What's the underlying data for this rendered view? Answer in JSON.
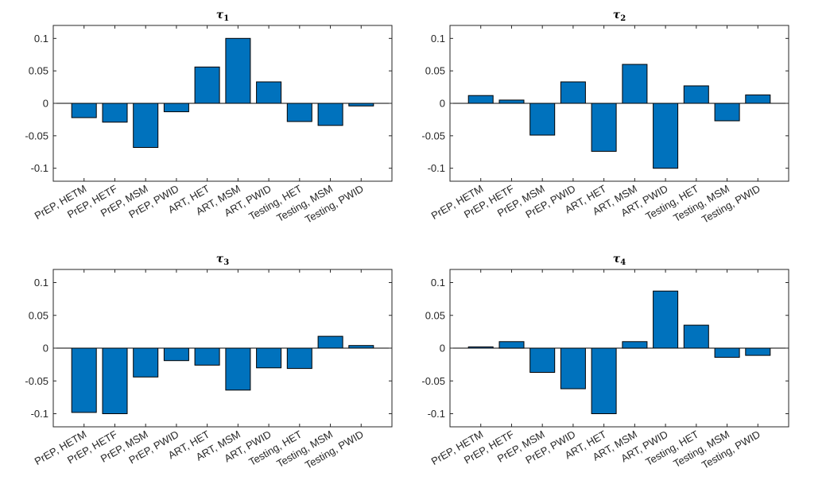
{
  "chart_data": [
    {
      "type": "bar",
      "title": "τ1",
      "title_symbol": "τ",
      "title_subscript": "1",
      "categories": [
        "PrEP, HETM",
        "PrEP, HETF",
        "PrEP, MSM",
        "PrEP, PWID",
        "ART, HET",
        "ART, MSM",
        "ART, PWID",
        "Testing, HET",
        "Testing, MSM",
        "Testing, PWID"
      ],
      "values": [
        -0.022,
        -0.029,
        -0.068,
        -0.013,
        0.056,
        0.1,
        0.033,
        -0.028,
        -0.034,
        -0.004
      ],
      "ylim": [
        -0.12,
        0.12
      ],
      "yticks": [
        0.1,
        0.05,
        0,
        -0.05,
        -0.1
      ],
      "ytick_labels": [
        "0.1",
        "0.05",
        "0",
        "-0.05",
        "-0.1"
      ],
      "xlabel": "",
      "ylabel": "",
      "color": "#0072bd"
    },
    {
      "type": "bar",
      "title": "τ2",
      "title_symbol": "τ",
      "title_subscript": "2",
      "categories": [
        "PrEP, HETM",
        "PrEP, HETF",
        "PrEP, MSM",
        "PrEP, PWID",
        "ART, HET",
        "ART, MSM",
        "ART, PWID",
        "Testing, HET",
        "Testing, MSM",
        "Testing, PWID"
      ],
      "values": [
        0.012,
        0.005,
        -0.049,
        0.033,
        -0.074,
        0.06,
        -0.1,
        0.027,
        -0.027,
        0.013
      ],
      "ylim": [
        -0.12,
        0.12
      ],
      "yticks": [
        0.1,
        0.05,
        0,
        -0.05,
        -0.1
      ],
      "ytick_labels": [
        "0.1",
        "0.05",
        "0",
        "-0.05",
        "-0.1"
      ],
      "xlabel": "",
      "ylabel": "",
      "color": "#0072bd"
    },
    {
      "type": "bar",
      "title": "τ3",
      "title_symbol": "τ",
      "title_subscript": "3",
      "categories": [
        "PrEP, HETM",
        "PrEP, HETF",
        "PrEP, MSM",
        "PrEP, PWID",
        "ART, HET",
        "ART, MSM",
        "ART, PWID",
        "Testing, HET",
        "Testing, MSM",
        "Testing, PWID"
      ],
      "values": [
        -0.098,
        -0.1,
        -0.044,
        -0.019,
        -0.026,
        -0.064,
        -0.03,
        -0.031,
        0.018,
        0.004
      ],
      "ylim": [
        -0.12,
        0.12
      ],
      "yticks": [
        0.1,
        0.05,
        0,
        -0.05,
        -0.1
      ],
      "ytick_labels": [
        "0.1",
        "0.05",
        "0",
        "-0.05",
        "-0.1"
      ],
      "xlabel": "",
      "ylabel": "",
      "color": "#0072bd"
    },
    {
      "type": "bar",
      "title": "τ4",
      "title_symbol": "τ",
      "title_subscript": "4",
      "categories": [
        "PrEP, HETM",
        "PrEP, HETF",
        "PrEP, MSM",
        "PrEP, PWID",
        "ART, HET",
        "ART, MSM",
        "ART, PWID",
        "Testing, HET",
        "Testing, MSM",
        "Testing, PWID"
      ],
      "values": [
        0.002,
        0.01,
        -0.037,
        -0.062,
        -0.1,
        0.01,
        0.087,
        0.035,
        -0.014,
        -0.011
      ],
      "ylim": [
        -0.12,
        0.12
      ],
      "yticks": [
        0.1,
        0.05,
        0,
        -0.05,
        -0.1
      ],
      "ytick_labels": [
        "0.1",
        "0.05",
        "0",
        "-0.05",
        "-0.1"
      ],
      "xlabel": "",
      "ylabel": "",
      "color": "#0072bd"
    }
  ]
}
